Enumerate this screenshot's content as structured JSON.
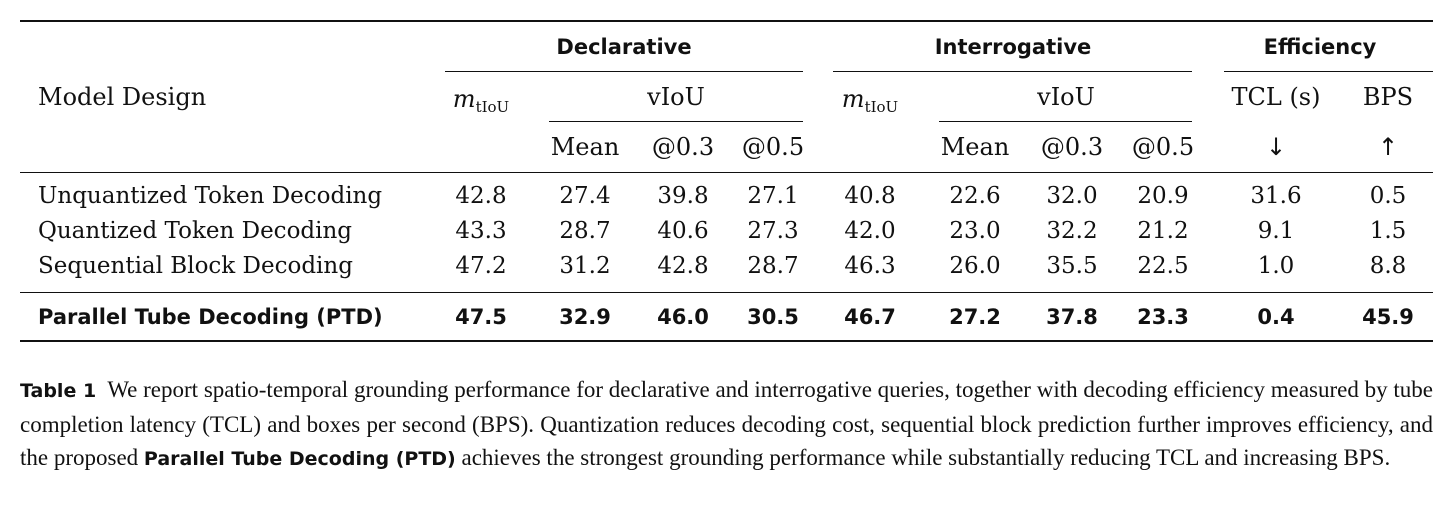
{
  "table": {
    "model_design_label": "Model Design",
    "groups": {
      "declarative": "Declarative",
      "interrogative": "Interrogative",
      "efficiency": "Efficiency"
    },
    "m_tiou": {
      "base": "m",
      "sub": "tIoU"
    },
    "viou_label": "vIoU",
    "sub_headers": {
      "mean": "Mean",
      "at03": "@0.3",
      "at05": "@0.5"
    },
    "tcl_label": "TCL (s)",
    "bps_label": "BPS",
    "tcl_arrow": "↓",
    "bps_arrow": "↑",
    "rows": [
      {
        "name": "Unquantized Token Decoding",
        "values": [
          "42.8",
          "27.4",
          "39.8",
          "27.1",
          "40.8",
          "22.6",
          "32.0",
          "20.9",
          "31.6",
          "0.5"
        ]
      },
      {
        "name": "Quantized Token Decoding",
        "values": [
          "43.3",
          "28.7",
          "40.6",
          "27.3",
          "42.0",
          "23.0",
          "32.2",
          "21.2",
          "9.1",
          "1.5"
        ]
      },
      {
        "name": "Sequential Block Decoding",
        "values": [
          "47.2",
          "31.2",
          "42.8",
          "28.7",
          "46.3",
          "26.0",
          "35.5",
          "22.5",
          "1.0",
          "8.8"
        ]
      }
    ],
    "best_row": {
      "name": "Parallel Tube Decoding (PTD)",
      "values": [
        "47.5",
        "32.9",
        "46.0",
        "30.5",
        "46.7",
        "27.2",
        "37.8",
        "23.3",
        "0.4",
        "45.9"
      ]
    }
  },
  "caption": {
    "label": "Table 1",
    "text_1": "We report spatio-temporal grounding performance for declarative and interrogative queries, together with decoding efficiency measured by tube completion latency (TCL) and boxes per second (BPS). Quantization reduces decoding cost, sequential block prediction further improves efficiency, and the proposed",
    "highlight": "Parallel Tube Decoding (PTD)",
    "text_2": "achieves the strongest grounding performance while substantially reducing TCL and increasing BPS."
  }
}
